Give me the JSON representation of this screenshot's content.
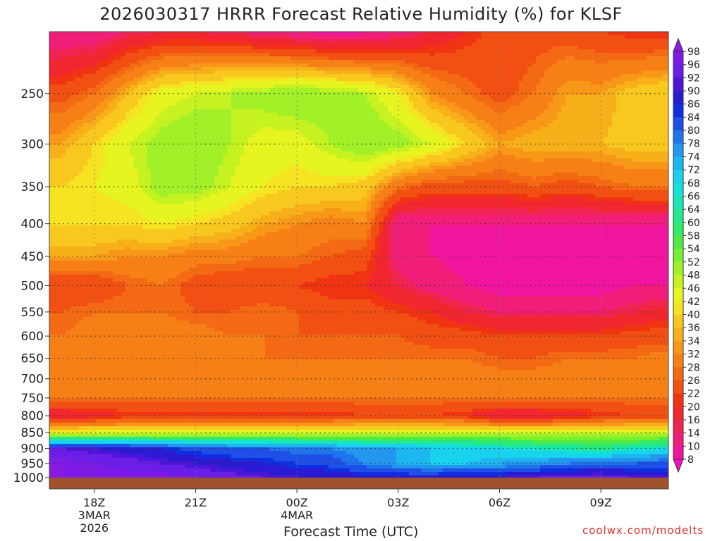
{
  "title": "2026030317 HRRR Forecast Relative Humidity (%) for KLSF",
  "credit": "coolwx.com/modelts",
  "chart_data": {
    "type": "heatmap",
    "title": "2026030317 HRRR Forecast Relative Humidity (%) for KLSF",
    "xlabel": "Forecast Time (UTC)",
    "ylabel": "",
    "x_unit": "forecast hour from 2026-03-03 17Z",
    "xlim": [
      -0.33,
      18
    ],
    "x_ticks": [
      {
        "value": 1,
        "label": "18Z",
        "sub": [
          "3MAR",
          "2026"
        ]
      },
      {
        "value": 4,
        "label": "21Z",
        "sub": []
      },
      {
        "value": 7,
        "label": "00Z",
        "sub": [
          "4MAR"
        ]
      },
      {
        "value": 10,
        "label": "03Z",
        "sub": []
      },
      {
        "value": 13,
        "label": "06Z",
        "sub": []
      },
      {
        "value": 16,
        "label": "09Z",
        "sub": []
      }
    ],
    "y_ticks": [
      250,
      300,
      350,
      400,
      450,
      500,
      550,
      600,
      650,
      700,
      750,
      800,
      850,
      900,
      950,
      1000
    ],
    "ylim": [
      1000,
      200
    ],
    "y_scale": "log-pressure",
    "grid": true,
    "colorbar": {
      "labels": [
        98,
        96,
        92,
        90,
        86,
        84,
        80,
        78,
        74,
        72,
        68,
        66,
        64,
        60,
        58,
        54,
        52,
        48,
        46,
        42,
        40,
        36,
        34,
        32,
        28,
        26,
        22,
        20,
        16,
        14,
        10,
        8
      ],
      "colors": [
        "#8a1ae0",
        "#7d1ae6",
        "#6b1ee8",
        "#4b16d8",
        "#2a1ad2",
        "#0f2ee0",
        "#1e50e8",
        "#1f74ec",
        "#2396ee",
        "#1cb6f0",
        "#18d2ee",
        "#14e2d8",
        "#18e6b6",
        "#22e88e",
        "#32ea6a",
        "#50ea44",
        "#7aee30",
        "#a2f028",
        "#c6f222",
        "#e6f420",
        "#f6e422",
        "#f8c81e",
        "#f8b01a",
        "#f89818",
        "#f68016",
        "#f46a14",
        "#f25012",
        "#f03412",
        "#f2262e",
        "#f02450",
        "#f01e78",
        "#f0149e",
        "#f012c0"
      ],
      "placement": "right"
    },
    "ground_color": "#a0522d",
    "times": [
      0,
      1,
      2,
      3,
      4,
      5,
      6,
      7,
      8,
      9,
      10,
      11,
      12,
      13,
      14,
      15,
      16,
      17,
      18
    ],
    "levels": [
      200,
      250,
      300,
      350,
      400,
      450,
      500,
      550,
      600,
      650,
      700,
      750,
      800,
      850,
      900,
      950,
      1000
    ],
    "rh": [
      [
        10,
        10,
        14,
        16,
        16,
        14,
        12,
        10,
        8,
        9,
        12,
        16,
        20,
        24,
        24,
        24,
        22,
        20,
        20
      ],
      [
        24,
        28,
        36,
        44,
        46,
        48,
        50,
        52,
        50,
        48,
        42,
        32,
        28,
        24,
        28,
        34,
        34,
        38,
        40
      ],
      [
        34,
        40,
        46,
        50,
        52,
        48,
        44,
        44,
        48,
        52,
        50,
        46,
        40,
        34,
        36,
        36,
        36,
        38,
        38
      ],
      [
        40,
        42,
        44,
        50,
        50,
        46,
        42,
        40,
        40,
        38,
        28,
        24,
        24,
        24,
        26,
        24,
        26,
        28,
        28
      ],
      [
        40,
        40,
        40,
        42,
        40,
        38,
        34,
        32,
        30,
        32,
        10,
        10,
        10,
        10,
        10,
        10,
        10,
        10,
        10
      ],
      [
        34,
        34,
        32,
        32,
        30,
        30,
        28,
        28,
        26,
        24,
        12,
        10,
        9,
        8,
        8,
        8,
        8,
        9,
        9
      ],
      [
        22,
        22,
        26,
        28,
        24,
        22,
        22,
        22,
        20,
        20,
        16,
        12,
        10,
        8,
        8,
        8,
        8,
        10,
        10
      ],
      [
        26,
        28,
        28,
        28,
        26,
        26,
        28,
        26,
        24,
        24,
        22,
        20,
        16,
        14,
        14,
        14,
        14,
        16,
        18
      ],
      [
        28,
        30,
        30,
        30,
        30,
        28,
        28,
        26,
        26,
        26,
        26,
        24,
        24,
        22,
        22,
        22,
        22,
        24,
        24
      ],
      [
        28,
        30,
        30,
        30,
        30,
        30,
        28,
        28,
        28,
        28,
        28,
        28,
        28,
        26,
        26,
        28,
        28,
        28,
        30
      ],
      [
        30,
        30,
        32,
        32,
        32,
        30,
        30,
        30,
        30,
        30,
        30,
        30,
        30,
        30,
        30,
        30,
        30,
        30,
        30
      ],
      [
        28,
        28,
        28,
        28,
        28,
        28,
        28,
        28,
        28,
        28,
        28,
        28,
        28,
        28,
        28,
        28,
        28,
        28,
        28
      ],
      [
        16,
        18,
        20,
        20,
        20,
        20,
        20,
        20,
        20,
        22,
        22,
        22,
        20,
        16,
        16,
        18,
        20,
        22,
        22
      ],
      [
        42,
        44,
        44,
        44,
        46,
        46,
        46,
        46,
        46,
        46,
        46,
        46,
        46,
        46,
        46,
        46,
        46,
        46,
        46
      ],
      [
        92,
        90,
        88,
        86,
        82,
        80,
        80,
        78,
        78,
        76,
        74,
        72,
        70,
        68,
        66,
        64,
        62,
        66,
        68
      ],
      [
        98,
        96,
        94,
        92,
        90,
        88,
        86,
        84,
        82,
        78,
        74,
        72,
        72,
        74,
        76,
        78,
        80,
        80,
        82
      ],
      [
        98,
        98,
        98,
        98,
        96,
        94,
        92,
        90,
        90,
        88,
        88,
        88,
        90,
        90,
        92,
        94,
        94,
        92,
        90
      ]
    ]
  }
}
